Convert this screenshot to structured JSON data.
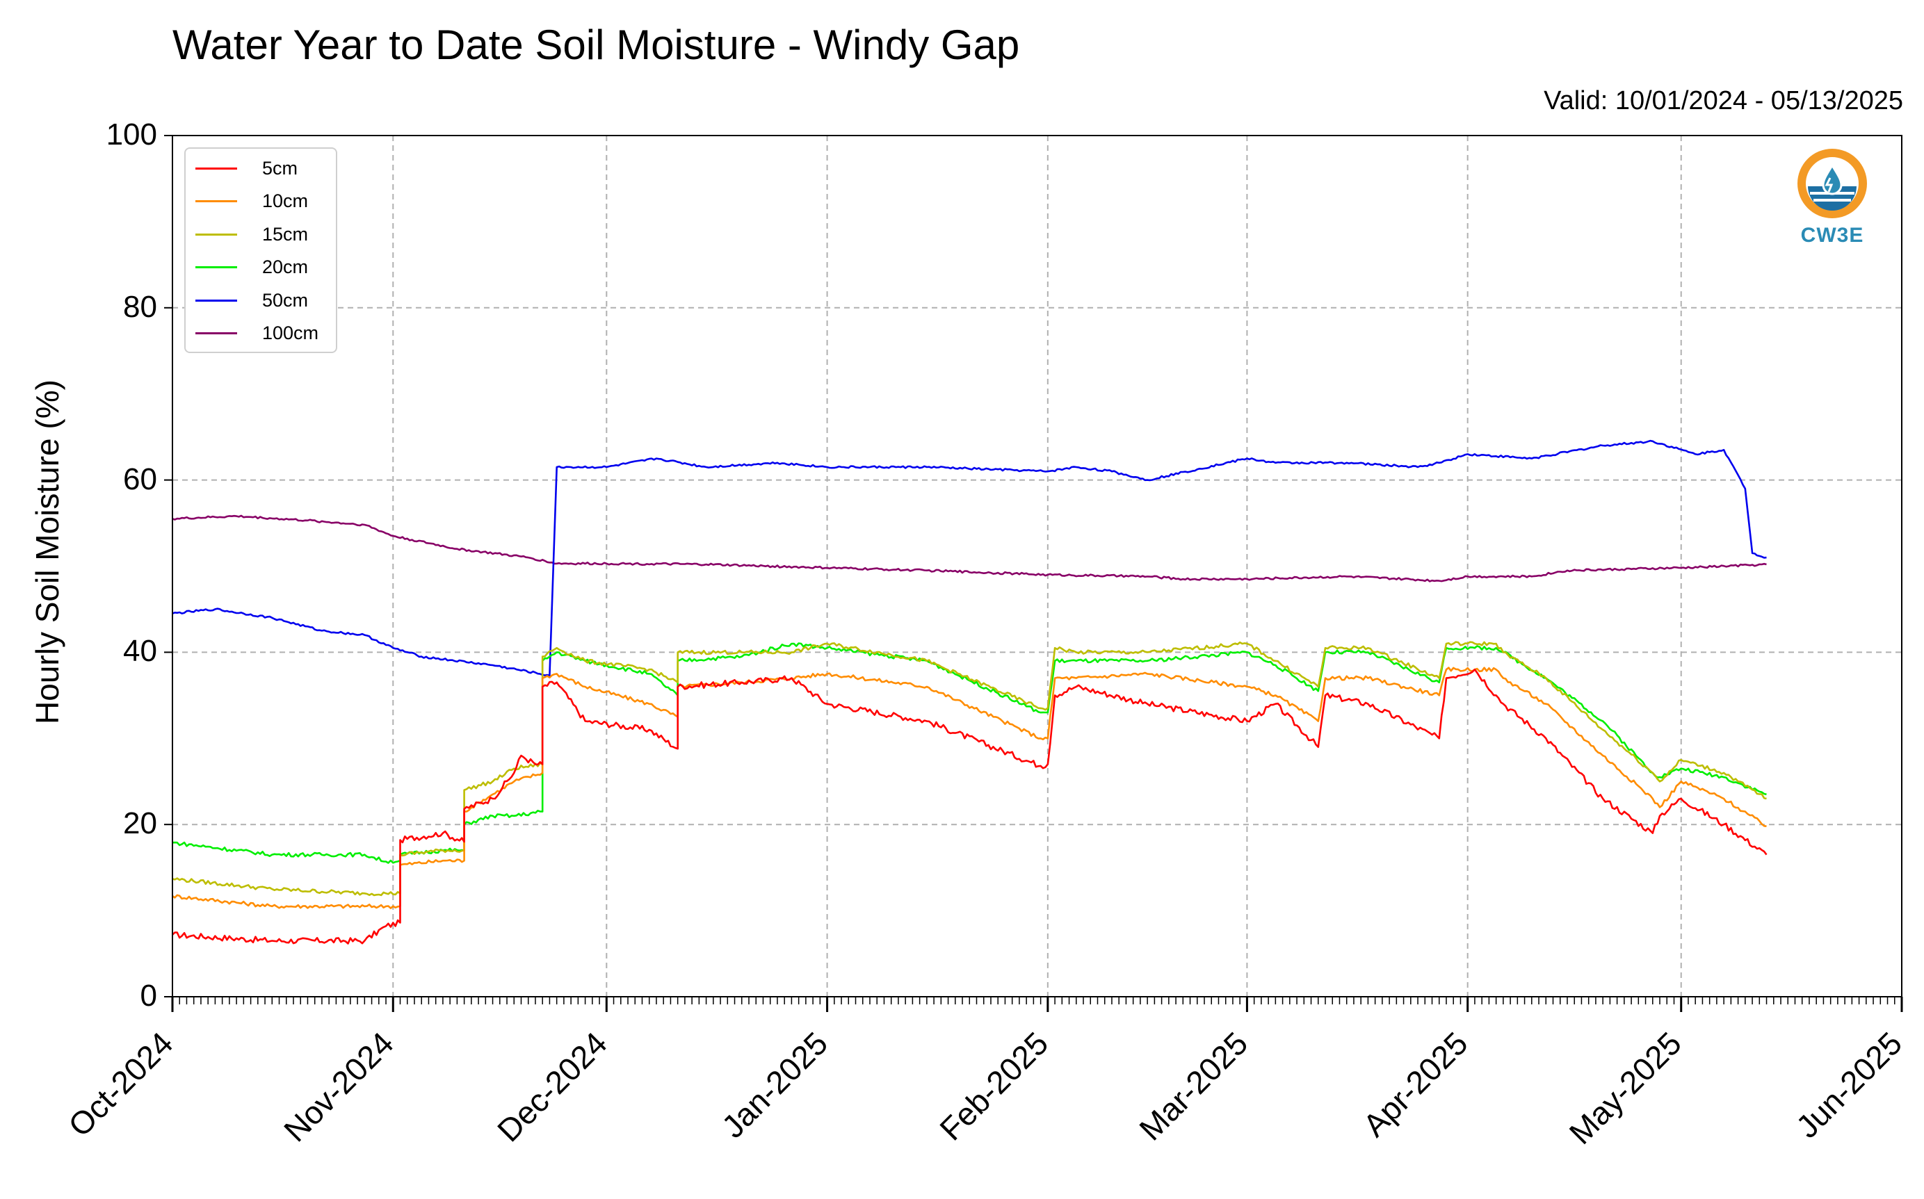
{
  "header": {
    "title": "Water Year to Date Soil Moisture - Windy Gap",
    "valid": "Valid: 10/01/2024 - 05/13/2025"
  },
  "logo": {
    "icon": "cw3e-logo-icon",
    "text": "CW3E"
  },
  "chart_data": {
    "type": "line",
    "title": "Water Year to Date Soil Moisture - Windy Gap",
    "subtitle": "Valid: 10/01/2024 - 05/13/2025",
    "ylabel": "Hourly Soil Moisture (%)",
    "xlabel": "",
    "ylim": [
      0,
      100
    ],
    "yticks": [
      0,
      20,
      40,
      60,
      80,
      100
    ],
    "xlim": [
      "2024-10-01",
      "2025-06-01"
    ],
    "xtick_dates": [
      "2024-10-01",
      "2024-11-01",
      "2024-12-01",
      "2025-01-01",
      "2025-02-01",
      "2025-03-01",
      "2025-04-01",
      "2025-05-01",
      "2025-06-01"
    ],
    "xtick_labels": [
      "Oct-2024",
      "Nov-2024",
      "Dec-2024",
      "Jan-2025",
      "Feb-2025",
      "Mar-2025",
      "Apr-2025",
      "May-2025",
      "Jun-2025"
    ],
    "grid": true,
    "legend_position": "top-left",
    "series": [
      {
        "name": "5cm",
        "color": "#ff0000",
        "x": [
          "2024-10-01",
          "2024-10-15",
          "2024-10-28",
          "2024-10-31",
          "2024-11-02",
          "2024-11-02",
          "2024-11-08",
          "2024-11-11",
          "2024-11-11",
          "2024-11-15",
          "2024-11-18",
          "2024-11-19",
          "2024-11-21",
          "2024-11-22",
          "2024-11-22",
          "2024-11-24",
          "2024-11-28",
          "2024-12-07",
          "2024-12-11",
          "2024-12-11",
          "2024-12-20",
          "2024-12-27",
          "2025-01-01",
          "2025-01-15",
          "2025-01-31",
          "2025-02-01",
          "2025-02-02",
          "2025-02-05",
          "2025-02-15",
          "2025-03-01",
          "2025-03-05",
          "2025-03-11",
          "2025-03-12",
          "2025-03-18",
          "2025-03-28",
          "2025-03-29",
          "2025-04-02",
          "2025-04-05",
          "2025-04-06",
          "2025-04-12",
          "2025-04-20",
          "2025-04-27",
          "2025-04-28",
          "2025-05-01",
          "2025-05-07",
          "2025-05-13"
        ],
        "y": [
          7.2,
          6.5,
          6.5,
          8.2,
          8.6,
          18.2,
          19,
          18,
          21.8,
          23,
          26,
          28,
          27,
          27,
          36,
          36.5,
          32,
          31,
          28.8,
          36,
          36.5,
          37,
          34,
          32,
          26.8,
          27,
          35,
          36,
          34,
          32,
          34,
          29,
          35,
          34,
          30,
          37,
          38,
          35,
          34,
          30,
          23,
          19,
          21,
          23,
          20,
          16.5
        ]
      },
      {
        "name": "10cm",
        "color": "#ff8c00",
        "x": [
          "2024-10-01",
          "2024-10-15",
          "2024-10-28",
          "2024-10-31",
          "2024-11-02",
          "2024-11-02",
          "2024-11-08",
          "2024-11-11",
          "2024-11-11",
          "2024-11-15",
          "2024-11-18",
          "2024-11-22",
          "2024-11-22",
          "2024-11-24",
          "2024-11-28",
          "2024-12-07",
          "2024-12-11",
          "2024-12-11",
          "2024-12-20",
          "2024-12-27",
          "2025-01-01",
          "2025-01-15",
          "2025-01-31",
          "2025-02-01",
          "2025-02-02",
          "2025-02-05",
          "2025-02-15",
          "2025-03-01",
          "2025-03-05",
          "2025-03-11",
          "2025-03-12",
          "2025-03-18",
          "2025-03-28",
          "2025-03-29",
          "2025-04-02",
          "2025-04-05",
          "2025-04-06",
          "2025-04-12",
          "2025-04-20",
          "2025-04-27",
          "2025-04-28",
          "2025-05-01",
          "2025-05-07",
          "2025-05-13"
        ],
        "y": [
          11.7,
          10.5,
          10.5,
          10.5,
          10.5,
          15.3,
          15.8,
          15.8,
          21.5,
          23.5,
          25,
          26,
          37,
          37.5,
          36,
          34,
          32.5,
          36,
          36.5,
          37,
          37.5,
          36,
          30,
          30,
          37,
          37,
          37.5,
          36,
          35,
          32,
          37,
          37,
          35,
          38,
          38,
          38,
          37,
          34,
          28,
          23,
          22,
          25,
          23,
          19.8
        ]
      },
      {
        "name": "15cm",
        "color": "#bdbd00",
        "x": [
          "2024-10-01",
          "2024-10-15",
          "2024-10-28",
          "2024-10-31",
          "2024-11-02",
          "2024-11-02",
          "2024-11-08",
          "2024-11-11",
          "2024-11-11",
          "2024-11-15",
          "2024-11-18",
          "2024-11-22",
          "2024-11-22",
          "2024-11-24",
          "2024-11-28",
          "2024-12-07",
          "2024-12-11",
          "2024-12-11",
          "2024-12-20",
          "2024-12-27",
          "2025-01-01",
          "2025-01-15",
          "2025-01-31",
          "2025-02-01",
          "2025-02-02",
          "2025-02-05",
          "2025-02-15",
          "2025-03-01",
          "2025-03-05",
          "2025-03-11",
          "2025-03-12",
          "2025-03-18",
          "2025-03-28",
          "2025-03-29",
          "2025-04-02",
          "2025-04-05",
          "2025-04-06",
          "2025-04-12",
          "2025-04-20",
          "2025-04-27",
          "2025-04-28",
          "2025-05-01",
          "2025-05-07",
          "2025-05-13"
        ],
        "y": [
          13.7,
          12.5,
          12,
          12,
          12,
          16.5,
          17,
          17,
          24,
          25,
          26.5,
          27,
          39.5,
          40.5,
          39,
          38,
          36.5,
          40,
          40,
          40,
          41,
          39,
          33.5,
          33.5,
          40.5,
          40,
          40,
          41,
          39,
          36,
          40.5,
          40.5,
          37,
          41,
          41,
          41,
          40,
          37,
          31,
          26,
          25,
          27.5,
          26,
          23
        ]
      },
      {
        "name": "20cm",
        "color": "#00ee00",
        "x": [
          "2024-10-01",
          "2024-10-15",
          "2024-10-28",
          "2024-10-31",
          "2024-11-02",
          "2024-11-02",
          "2024-11-08",
          "2024-11-11",
          "2024-11-11",
          "2024-11-15",
          "2024-11-18",
          "2024-11-22",
          "2024-11-22",
          "2024-11-24",
          "2024-11-28",
          "2024-12-07",
          "2024-12-11",
          "2024-12-11",
          "2024-12-20",
          "2024-12-27",
          "2025-01-01",
          "2025-01-15",
          "2025-01-31",
          "2025-02-01",
          "2025-02-02",
          "2025-02-05",
          "2025-02-15",
          "2025-03-01",
          "2025-03-05",
          "2025-03-11",
          "2025-03-12",
          "2025-03-18",
          "2025-03-28",
          "2025-03-29",
          "2025-04-02",
          "2025-04-05",
          "2025-04-06",
          "2025-04-12",
          "2025-04-20",
          "2025-04-27",
          "2025-04-28",
          "2025-05-01",
          "2025-05-07",
          "2025-05-13"
        ],
        "y": [
          17.9,
          16.5,
          16.5,
          15.7,
          15.8,
          16.5,
          17,
          17,
          20,
          21,
          21,
          21.5,
          39,
          40,
          39,
          37.5,
          35,
          39,
          39.5,
          41,
          40.5,
          39,
          33,
          33,
          39,
          39,
          39,
          40,
          38.5,
          35.5,
          40,
          40,
          36.5,
          40.5,
          40.5,
          40.5,
          40,
          37,
          32,
          26,
          25.5,
          26.5,
          25.5,
          23.5
        ]
      },
      {
        "name": "50cm",
        "color": "#0000ee",
        "x": [
          "2024-10-01",
          "2024-10-07",
          "2024-10-15",
          "2024-10-22",
          "2024-10-28",
          "2024-11-01",
          "2024-11-05",
          "2024-11-15",
          "2024-11-23",
          "2024-11-24",
          "2024-11-26",
          "2024-12-01",
          "2024-12-08",
          "2024-12-15",
          "2024-12-25",
          "2025-01-01",
          "2025-01-15",
          "2025-02-01",
          "2025-02-05",
          "2025-02-10",
          "2025-02-15",
          "2025-03-01",
          "2025-03-05",
          "2025-03-15",
          "2025-03-25",
          "2025-03-28",
          "2025-04-01",
          "2025-04-10",
          "2025-04-20",
          "2025-04-27",
          "2025-05-03",
          "2025-05-07",
          "2025-05-10",
          "2025-05-11",
          "2025-05-13"
        ],
        "y": [
          44.5,
          45,
          44,
          42.5,
          42,
          40.5,
          39.5,
          38.5,
          37.3,
          61.5,
          61.5,
          61.5,
          62.5,
          61.5,
          62,
          61.5,
          61.5,
          61,
          61.5,
          61,
          60,
          62.5,
          62,
          62,
          61.5,
          62,
          63,
          62.5,
          64,
          64.5,
          63,
          63.5,
          59,
          51.5,
          51
        ]
      },
      {
        "name": "100cm",
        "color": "#880066",
        "x": [
          "2024-10-01",
          "2024-10-10",
          "2024-10-20",
          "2024-10-28",
          "2024-11-01",
          "2024-11-10",
          "2024-11-20",
          "2024-11-24",
          "2024-12-01",
          "2024-12-15",
          "2025-01-01",
          "2025-01-15",
          "2025-02-01",
          "2025-02-15",
          "2025-02-20",
          "2025-03-01",
          "2025-03-15",
          "2025-03-28",
          "2025-04-01",
          "2025-04-10",
          "2025-04-15",
          "2025-05-01",
          "2025-05-13"
        ],
        "y": [
          55.5,
          55.8,
          55.3,
          54.8,
          53.5,
          52,
          51,
          50.3,
          50.3,
          50.2,
          49.8,
          49.5,
          49.0,
          48.8,
          48.5,
          48.5,
          48.8,
          48.3,
          48.8,
          48.8,
          49.5,
          49.8,
          50.2
        ]
      }
    ]
  }
}
